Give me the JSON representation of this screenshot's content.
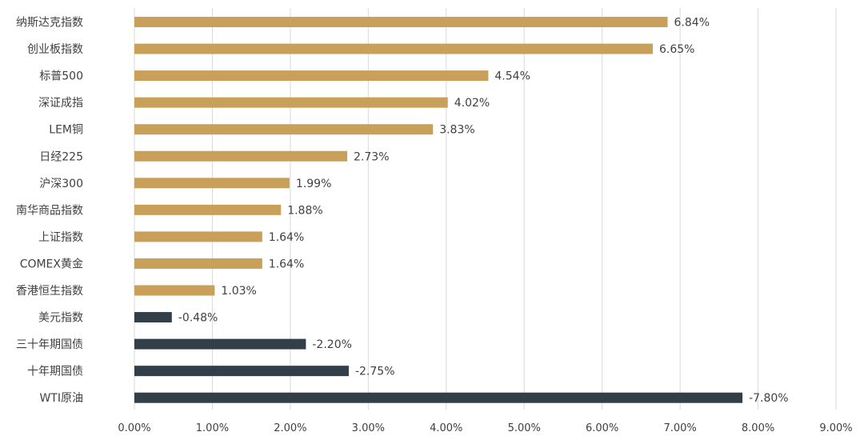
{
  "chart_data": {
    "type": "bar",
    "orientation": "horizontal",
    "title": "",
    "xlabel": "",
    "ylabel": "",
    "xlim": [
      0,
      9
    ],
    "grid": "vertical",
    "legend": "none",
    "colors": {
      "positive": "#C9A05A",
      "negative": "#333F48"
    },
    "ticks": [
      "0.00%",
      "1.00%",
      "2.00%",
      "3.00%",
      "4.00%",
      "5.00%",
      "6.00%",
      "7.00%",
      "8.00%",
      "9.00%"
    ],
    "tick_values": [
      0,
      1,
      2,
      3,
      4,
      5,
      6,
      7,
      8,
      9
    ],
    "categories": [
      "纳斯达克指数",
      "创业板指数",
      "标普500",
      "深证成指",
      "LEM铜",
      "日经225",
      "沪深300",
      "南华商品指数",
      "上证指数",
      "COMEX黄金",
      "香港恒生指数",
      "美元指数",
      "三十年期国债",
      "十年期国债",
      "WTI原油"
    ],
    "values": [
      6.84,
      6.65,
      4.54,
      4.02,
      3.83,
      2.73,
      1.99,
      1.88,
      1.64,
      1.64,
      1.03,
      -0.48,
      -2.2,
      -2.75,
      -7.8
    ],
    "value_labels": [
      "6.84%",
      "6.65%",
      "4.54%",
      "4.02%",
      "3.83%",
      "2.73%",
      "1.99%",
      "1.88%",
      "1.64%",
      "1.64%",
      "1.03%",
      "-0.48%",
      "-2.20%",
      "-2.75%",
      "-7.80%"
    ]
  }
}
